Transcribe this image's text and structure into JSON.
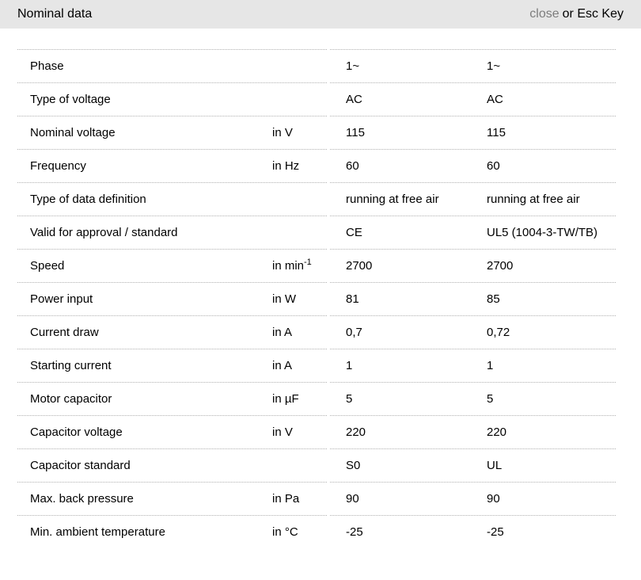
{
  "header": {
    "title": "Nominal data",
    "close_label": "close",
    "esc_hint": "or Esc Key"
  },
  "table": {
    "rows": [
      {
        "label": "Phase",
        "unit": "",
        "values": [
          "1~",
          "1~"
        ]
      },
      {
        "label": "Type of voltage",
        "unit": "",
        "values": [
          "AC",
          "AC"
        ]
      },
      {
        "label": "Nominal voltage",
        "unit": "in V",
        "values": [
          "115",
          "115"
        ]
      },
      {
        "label": "Frequency",
        "unit": "in Hz",
        "values": [
          "60",
          "60"
        ]
      },
      {
        "label": "Type of data definition",
        "unit": "",
        "values": [
          "running at free air",
          "running at free air"
        ]
      },
      {
        "label": "Valid for approval / standard",
        "unit": "",
        "values": [
          "CE",
          "UL5 (1004-3-TW/TB)"
        ]
      },
      {
        "label": "Speed",
        "unit": "in min",
        "unit_sup": "-1",
        "values": [
          "2700",
          "2700"
        ]
      },
      {
        "label": "Power input",
        "unit": "in W",
        "values": [
          "81",
          "85"
        ]
      },
      {
        "label": "Current draw",
        "unit": "in A",
        "values": [
          "0,7",
          "0,72"
        ]
      },
      {
        "label": "Starting current",
        "unit": "in A",
        "values": [
          "1",
          "1"
        ]
      },
      {
        "label": "Motor capacitor",
        "unit": "in µF",
        "values": [
          "5",
          "5"
        ]
      },
      {
        "label": "Capacitor voltage",
        "unit": "in V",
        "values": [
          "220",
          "220"
        ]
      },
      {
        "label": "Capacitor standard",
        "unit": "",
        "values": [
          "S0",
          "UL"
        ]
      },
      {
        "label": "Max. back pressure",
        "unit": "in Pa",
        "values": [
          "90",
          "90"
        ]
      },
      {
        "label": "Min. ambient temperature",
        "unit": "in °C",
        "values": [
          "-25",
          "-25"
        ]
      }
    ]
  },
  "colors": {
    "header_bg": "#e6e6e6",
    "close_link": "#7d7d7d",
    "divider": "#b0b0b0",
    "text": "#000000"
  }
}
